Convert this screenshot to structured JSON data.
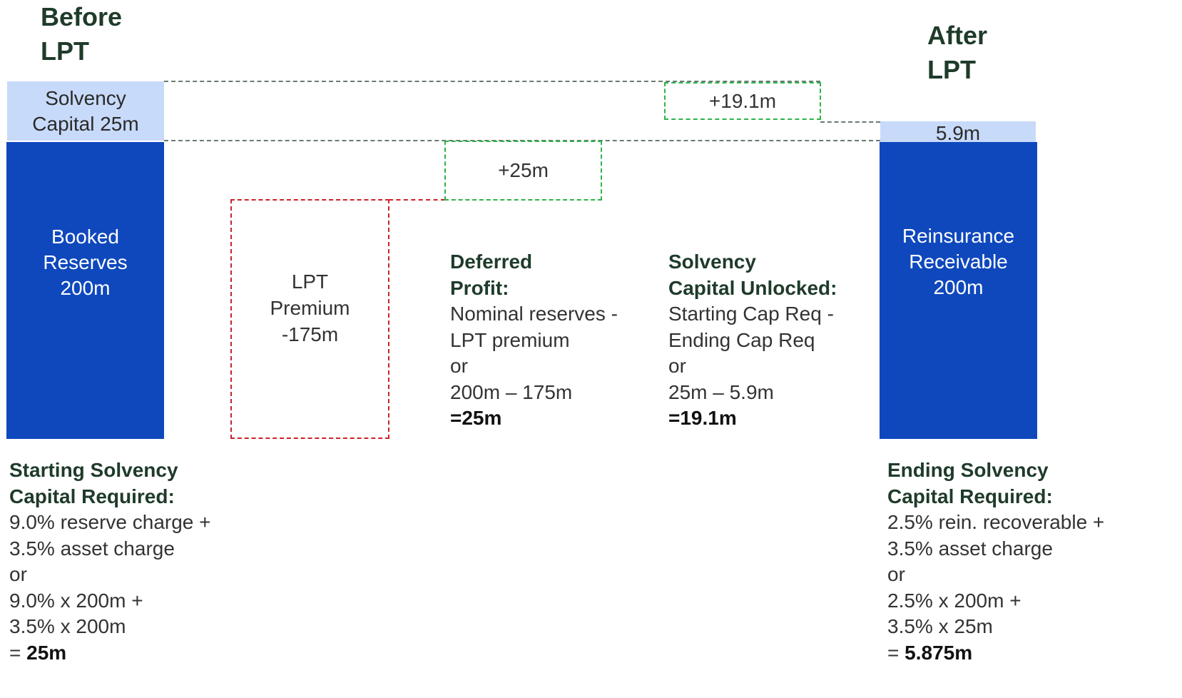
{
  "headings": {
    "before_line1": "Before",
    "before_line2": "LPT",
    "after_line1": "After",
    "after_line2": "LPT"
  },
  "blocks": {
    "solvency_capital_before": [
      "Solvency",
      "Capital 25m"
    ],
    "booked_reserves": [
      "Booked",
      "Reserves",
      "200m"
    ],
    "lpt_premium": [
      "LPT",
      "Premium",
      "-175m"
    ],
    "deferred_profit_box": "+25m",
    "solvency_unlocked_box": "+19.1m",
    "solvency_capital_after": "5.9m",
    "reinsurance_receivable": [
      "Reinsurance",
      "Receivable",
      "200m"
    ]
  },
  "annotations": {
    "deferred_profit": {
      "title": [
        "Deferred",
        "Profit:"
      ],
      "lines": [
        "Nominal reserves -",
        "LPT premium",
        "or",
        "200m – 175m"
      ],
      "result": "=25m"
    },
    "solvency_unlocked": {
      "title": [
        "Solvency",
        "Capital Unlocked:"
      ],
      "lines": [
        "Starting Cap Req -",
        "Ending Cap Req",
        "or",
        "25m – 5.9m"
      ],
      "result": "=19.1m"
    },
    "starting_capital": {
      "title": [
        "Starting Solvency",
        "Capital Required:"
      ],
      "lines": [
        "9.0% reserve charge +",
        "3.5% asset charge",
        "or",
        "9.0% x 200m +",
        "3.5% x 200m"
      ],
      "result_prefix": "= ",
      "result": "25m"
    },
    "ending_capital": {
      "title": [
        "Ending Solvency",
        "Capital Required:"
      ],
      "lines": [
        "2.5% rein. recoverable +",
        "3.5% asset charge",
        "or",
        "2.5% x 200m +",
        "3.5% x 25m"
      ],
      "result_prefix": "= ",
      "result": "5.875m"
    }
  },
  "colors": {
    "dark_blue": "#0f48bd",
    "light_blue": "#c8daf9",
    "green_dash": "#2fb34a",
    "red_dash": "#c9242b",
    "heading": "#1f3b2a"
  }
}
